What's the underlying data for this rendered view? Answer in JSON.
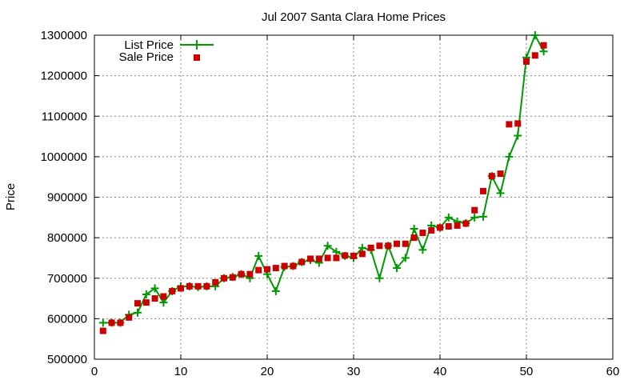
{
  "chart_data": {
    "type": "scatter",
    "title": "Jul 2007 Santa Clara Home Prices",
    "xlabel": "",
    "ylabel": "Price",
    "xlim": [
      0,
      60
    ],
    "ylim": [
      500000,
      1300000
    ],
    "xticks": [
      0,
      10,
      20,
      30,
      40,
      50,
      60
    ],
    "yticks": [
      500000,
      600000,
      700000,
      800000,
      900000,
      1000000,
      1100000,
      1200000,
      1300000
    ],
    "grid": true,
    "legend": "top-left",
    "series": [
      {
        "name": "List Price",
        "style": "linespoints",
        "marker": "plus",
        "color": "#009900",
        "x": [
          1,
          2,
          3,
          4,
          5,
          6,
          7,
          8,
          9,
          10,
          11,
          12,
          13,
          14,
          15,
          16,
          17,
          18,
          19,
          20,
          21,
          22,
          23,
          24,
          25,
          26,
          27,
          28,
          29,
          30,
          31,
          32,
          33,
          34,
          35,
          36,
          37,
          38,
          39,
          40,
          41,
          42,
          43,
          44,
          45,
          46,
          47,
          48,
          49,
          50,
          51,
          52
        ],
        "y": [
          590000,
          590000,
          590000,
          610000,
          615000,
          660000,
          675000,
          640000,
          668000,
          680000,
          680000,
          678000,
          680000,
          680000,
          700000,
          703000,
          710000,
          700000,
          755000,
          710000,
          668000,
          728000,
          730000,
          740000,
          745000,
          738000,
          780000,
          765000,
          755000,
          750000,
          775000,
          770000,
          700000,
          780000,
          725000,
          750000,
          822000,
          770000,
          830000,
          825000,
          850000,
          840000,
          836000,
          850000,
          852000,
          952000,
          910000,
          1000000,
          1052000,
          1245000,
          1300000,
          1260000
        ]
      },
      {
        "name": "Sale Price",
        "style": "points",
        "marker": "square",
        "color": "#cc0000",
        "x": [
          1,
          2,
          3,
          4,
          5,
          6,
          7,
          8,
          9,
          10,
          11,
          12,
          13,
          14,
          15,
          16,
          17,
          18,
          19,
          20,
          21,
          22,
          23,
          24,
          25,
          26,
          27,
          28,
          29,
          30,
          31,
          32,
          33,
          34,
          35,
          36,
          37,
          38,
          39,
          40,
          41,
          42,
          43,
          44,
          45,
          46,
          47,
          48,
          49,
          50,
          51,
          52
        ],
        "y": [
          570000,
          590000,
          590000,
          603000,
          638000,
          640000,
          650000,
          655000,
          668000,
          675000,
          680000,
          680000,
          680000,
          690000,
          700000,
          702000,
          710000,
          710000,
          720000,
          722000,
          725000,
          730000,
          730000,
          740000,
          748000,
          748000,
          750000,
          750000,
          756000,
          755000,
          760000,
          775000,
          780000,
          780000,
          785000,
          785000,
          800000,
          812000,
          818000,
          825000,
          828000,
          830000,
          835000,
          868000,
          915000,
          952000,
          958000,
          1080000,
          1082000,
          1235000,
          1250000,
          1275000
        ]
      }
    ]
  }
}
